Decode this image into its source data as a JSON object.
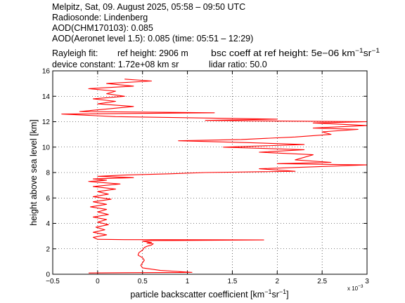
{
  "header": {
    "line1": "Melpitz, Sat, 09. August 2025, 05:58 – 09:50 UTC",
    "line2": "Radiosonde: Lindenberg",
    "line3": "AOD(CHM170103): 0.085",
    "line4": "AOD(Aeronet level 1.5): 0.085   (time: 05:51 – 12:29)",
    "rayleigh_label": "Rayleigh fit:",
    "ref_height": "ref height: 2906 m",
    "bsc_coeff_prefix": "bsc coeff at ref height: 5e−06 km",
    "bsc_coeff_exp1": "−1",
    "bsc_coeff_mid": "sr",
    "bsc_coeff_exp2": "−1",
    "device_constant": "device constant: 1.72e+08 km sr",
    "lidar_ratio": "lidar ratio: 50.0"
  },
  "chart_data": {
    "type": "line",
    "xlabel_prefix": "particle backscatter coefficient [km",
    "xlabel_exp1": "−1",
    "xlabel_mid": "sr",
    "xlabel_exp2": "−1",
    "xlabel_suffix": "]",
    "ylabel": "height above sea level [km]",
    "x_scale_note_base": "x 10",
    "x_scale_note_exp": "−3",
    "xlim": [
      -0.5,
      3
    ],
    "ylim": [
      0,
      16
    ],
    "xticks": [
      -0.5,
      0,
      0.5,
      1,
      1.5,
      2,
      2.5,
      3
    ],
    "xtick_labels": [
      "−0.5",
      "0",
      "0.5",
      "1",
      "1.5",
      "2",
      "2.5",
      "3"
    ],
    "yticks": [
      0,
      2,
      4,
      6,
      8,
      10,
      12,
      14,
      16
    ],
    "ytick_labels": [
      "0",
      "2",
      "4",
      "6",
      "8",
      "10",
      "12",
      "14",
      "16"
    ],
    "grid": true,
    "line_color": "#ff0000",
    "series": [
      {
        "points": [
          [
            -0.1,
            0.1
          ],
          [
            0.3,
            0.12
          ],
          [
            1.05,
            0.15
          ],
          [
            0.7,
            0.3
          ],
          [
            0.5,
            0.5
          ],
          [
            0.48,
            0.7
          ],
          [
            0.5,
            0.9
          ],
          [
            0.52,
            1.1
          ],
          [
            0.5,
            1.3
          ],
          [
            0.45,
            1.5
          ],
          [
            0.46,
            1.7
          ],
          [
            0.5,
            1.9
          ],
          [
            0.52,
            2.1
          ],
          [
            0.55,
            2.2
          ],
          [
            0.6,
            2.3
          ],
          [
            0.62,
            2.4
          ],
          [
            0.55,
            2.45
          ],
          [
            0.6,
            2.5
          ],
          [
            0.55,
            2.55
          ],
          [
            0.5,
            2.6
          ],
          [
            0.6,
            2.65
          ],
          [
            1.85,
            2.7
          ],
          [
            0.3,
            2.72
          ],
          [
            0,
            2.75
          ],
          [
            -0.05,
            2.9
          ],
          [
            0.1,
            3.1
          ],
          [
            -0.05,
            3.3
          ],
          [
            0.08,
            3.5
          ],
          [
            -0.02,
            3.7
          ],
          [
            0.12,
            3.9
          ],
          [
            0.0,
            4.1
          ],
          [
            0.1,
            4.3
          ],
          [
            -0.05,
            4.5
          ],
          [
            0.12,
            4.7
          ],
          [
            0.0,
            4.9
          ],
          [
            0.1,
            5.1
          ],
          [
            -0.08,
            5.3
          ],
          [
            0.1,
            5.5
          ],
          [
            -0.05,
            5.7
          ],
          [
            0.15,
            5.9
          ],
          [
            -0.05,
            6.1
          ],
          [
            0.12,
            6.3
          ],
          [
            0.0,
            6.5
          ],
          [
            0.2,
            6.7
          ],
          [
            -0.05,
            6.9
          ],
          [
            0.25,
            7.1
          ],
          [
            -0.1,
            7.3
          ],
          [
            0.1,
            7.4
          ],
          [
            -0.05,
            7.5
          ],
          [
            0.4,
            7.6
          ],
          [
            0.0,
            7.7
          ],
          [
            0.3,
            7.8
          ],
          [
            0.8,
            7.9
          ],
          [
            1.2,
            8.0
          ],
          [
            2.2,
            8.1
          ],
          [
            1.8,
            8.3
          ],
          [
            3.0,
            8.6
          ],
          [
            2.0,
            8.7
          ],
          [
            2.6,
            8.8
          ],
          [
            2.2,
            9.0
          ],
          [
            2.3,
            9.2
          ],
          [
            2.4,
            9.4
          ],
          [
            1.8,
            9.6
          ],
          [
            2.3,
            9.8
          ],
          [
            1.4,
            10.0
          ],
          [
            2.3,
            10.2
          ],
          [
            1.7,
            10.35
          ],
          [
            0.9,
            10.5
          ],
          [
            1.6,
            10.6
          ],
          [
            2.2,
            10.8
          ],
          [
            2.6,
            11.0
          ],
          [
            2.5,
            11.2
          ],
          [
            2.9,
            11.4
          ],
          [
            2.4,
            11.5
          ],
          [
            3.0,
            11.7
          ],
          [
            2.4,
            11.9
          ],
          [
            3.0,
            12.0
          ],
          [
            1.2,
            12.1
          ],
          [
            2.0,
            12.2
          ],
          [
            0.2,
            12.4
          ],
          [
            -0.4,
            12.6
          ],
          [
            1.3,
            12.7
          ],
          [
            -0.2,
            12.8
          ],
          [
            0.1,
            13.0
          ],
          [
            0.4,
            13.2
          ],
          [
            0.0,
            13.4
          ],
          [
            0.2,
            13.6
          ],
          [
            -0.05,
            13.8
          ],
          [
            0.3,
            14.0
          ],
          [
            0.1,
            14.2
          ],
          [
            0.2,
            14.4
          ],
          [
            -0.1,
            14.6
          ],
          [
            0.4,
            14.8
          ],
          [
            0.1,
            15.0
          ],
          [
            0.6,
            15.2
          ],
          [
            0.3,
            15.35
          ]
        ]
      }
    ]
  }
}
